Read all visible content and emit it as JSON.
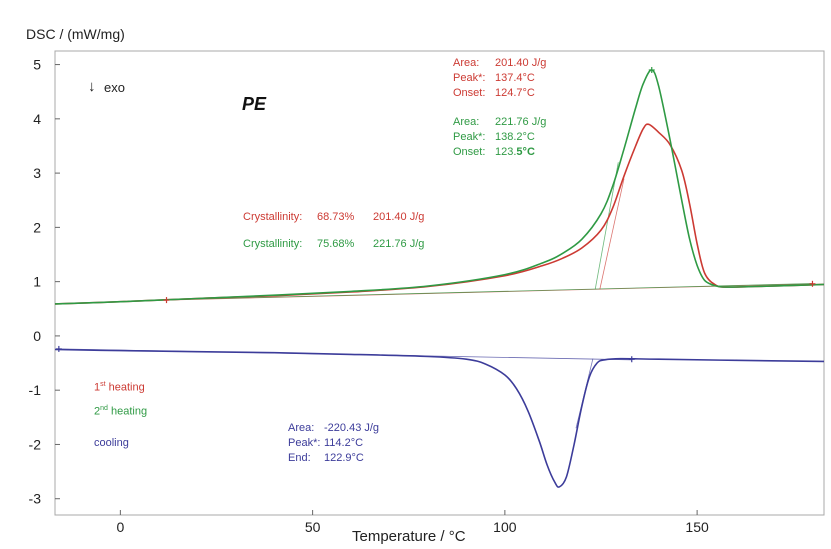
{
  "y_axis_title": "DSC / (mW/mg)",
  "x_axis_title": "Temperature / °C",
  "exo_arrow": "↓",
  "exo_text": "exo",
  "sample": "PE",
  "colors": {
    "heating1": "#cc3a33",
    "heating2": "#2f9a44",
    "cooling": "#3c3c9a"
  },
  "annotations": {
    "heating1": {
      "area_label": "Area:",
      "area": "201.40 J/g",
      "peak_label": "Peak*:",
      "peak": "137.4°C",
      "onset_label": "Onset:",
      "onset": "124.7°C"
    },
    "heating2": {
      "area_label": "Area:",
      "area": "221.76 J/g",
      "peak_label": "Peak*:",
      "peak": "138.2°C",
      "onset_label": "Onset:",
      "onset_a": "123.",
      "onset_b": "5°C"
    },
    "cooling": {
      "area_label": "Area:",
      "area": "-220.43 J/g",
      "peak_label": "Peak*:",
      "peak": "114.2°C",
      "end_label": "End:",
      "end": "122.9°C"
    }
  },
  "crystallinity": {
    "heating1": {
      "label": "Crystallinity:",
      "value": "68.73%",
      "enthalpy": "201.40 J/g"
    },
    "heating2": {
      "label": "Crystallinity:",
      "value": "75.68%",
      "enthalpy": "221.76 J/g"
    }
  },
  "legend": {
    "heating1_a": "1",
    "heating1_sup": "st",
    "heating1_b": " heating",
    "heating2_a": "2",
    "heating2_sup": "nd",
    "heating2_b": " heating",
    "cooling": "cooling"
  },
  "chart_data": {
    "type": "line",
    "xlabel": "Temperature / °C",
    "ylabel": "DSC / (mW/mg)",
    "xlim": [
      -17,
      183
    ],
    "ylim": [
      -3.3,
      5.25
    ],
    "xticks": [
      0,
      50,
      100,
      150
    ],
    "yticks": [
      -3,
      -2,
      -1,
      0,
      1,
      2,
      3,
      4,
      5
    ],
    "grid": false,
    "series": [
      {
        "name": "1st heating",
        "color": "#cc3a33",
        "x": [
          -17,
          0,
          20,
          40,
          60,
          80,
          100,
          110,
          115,
          120,
          125,
          128,
          131,
          134,
          136,
          137.4,
          140,
          143,
          146,
          148,
          150,
          152,
          155,
          158,
          165,
          175,
          183
        ],
        "y": [
          0.59,
          0.63,
          0.69,
          0.74,
          0.81,
          0.91,
          1.11,
          1.3,
          1.43,
          1.62,
          1.95,
          2.35,
          2.95,
          3.5,
          3.82,
          3.9,
          3.75,
          3.52,
          3.05,
          2.45,
          1.7,
          1.15,
          0.93,
          0.9,
          0.91,
          0.93,
          0.95
        ]
      },
      {
        "name": "2nd heating",
        "color": "#2f9a44",
        "x": [
          -17,
          0,
          20,
          40,
          60,
          80,
          100,
          110,
          115,
          120,
          125,
          128,
          131,
          134,
          136,
          138.2,
          140,
          143,
          146,
          148,
          150,
          152,
          155,
          158,
          165,
          175,
          183
        ],
        "y": [
          0.59,
          0.63,
          0.69,
          0.75,
          0.82,
          0.92,
          1.13,
          1.35,
          1.52,
          1.78,
          2.25,
          2.75,
          3.45,
          4.2,
          4.65,
          4.9,
          4.6,
          3.6,
          2.5,
          1.8,
          1.3,
          1.02,
          0.92,
          0.9,
          0.91,
          0.93,
          0.95
        ]
      },
      {
        "name": "cooling",
        "color": "#3c3c9a",
        "x": [
          -17,
          0,
          20,
          40,
          60,
          80,
          90,
          95,
          100,
          103,
          106,
          109,
          111,
          113,
          114.2,
          116,
          118,
          120,
          122,
          124,
          126,
          130,
          140,
          160,
          183
        ],
        "y": [
          -0.25,
          -0.27,
          -0.29,
          -0.31,
          -0.34,
          -0.38,
          -0.43,
          -0.52,
          -0.72,
          -0.97,
          -1.38,
          -1.95,
          -2.38,
          -2.7,
          -2.78,
          -2.6,
          -2.0,
          -1.3,
          -0.75,
          -0.5,
          -0.44,
          -0.42,
          -0.43,
          -0.45,
          -0.47
        ]
      }
    ],
    "baselines": [
      {
        "series": "1st heating",
        "color": "#cc3a33",
        "x": [
          12,
          180
        ],
        "y": [
          0.66,
          0.96
        ]
      },
      {
        "series": "2nd heating",
        "color": "#2f9a44",
        "x": [
          12,
          180
        ],
        "y": [
          0.665,
          0.965
        ]
      },
      {
        "series": "cooling",
        "color": "#3c3c9a",
        "x": [
          -16,
          133
        ],
        "y": [
          -0.24,
          -0.44
        ]
      }
    ],
    "tangents": [
      {
        "series": "1st heating",
        "color": "#cc3a33",
        "x": [
          124.7,
          131
        ],
        "y": [
          0.86,
          2.9
        ]
      },
      {
        "series": "2nd heating",
        "color": "#2f9a44",
        "x": [
          123.5,
          129.5
        ],
        "y": [
          0.86,
          3.2
        ]
      },
      {
        "series": "cooling",
        "color": "#3c3c9a",
        "x": [
          122.9,
          118.5
        ],
        "y": [
          -0.42,
          -1.7
        ]
      }
    ],
    "markers": [
      {
        "series": "1st heating",
        "x": 12,
        "y": 0.66
      },
      {
        "series": "1st heating",
        "x": 180,
        "y": 0.96
      },
      {
        "series": "2nd heating",
        "x": 138.2,
        "y": 4.9
      },
      {
        "series": "cooling",
        "x": -16,
        "y": -0.24
      },
      {
        "series": "cooling",
        "x": 133,
        "y": -0.43
      }
    ]
  }
}
